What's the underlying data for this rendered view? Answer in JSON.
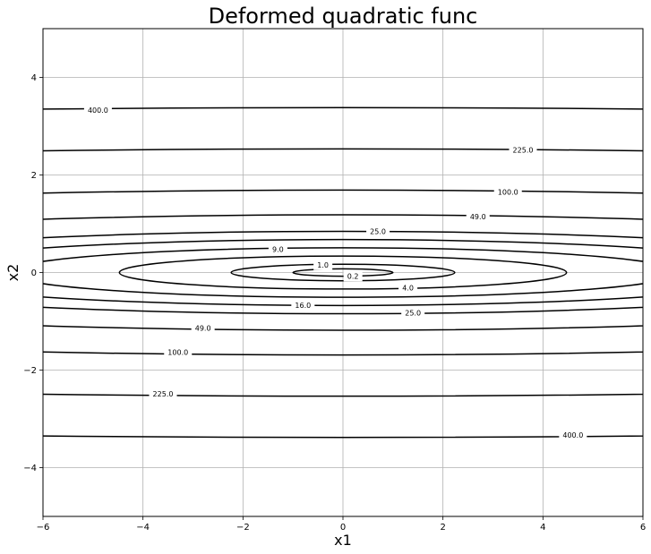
{
  "chart_data": {
    "type": "contour",
    "title": "Deformed quadratic func",
    "xlabel": "x1",
    "ylabel": "x2",
    "xlim": [
      -6,
      6
    ],
    "ylim": [
      -5,
      5
    ],
    "grid": true,
    "xticks": [
      -6,
      -4,
      -2,
      0,
      2,
      4,
      6
    ],
    "yticks": [
      -4,
      -2,
      0,
      2,
      4
    ],
    "xtick_labels": [
      "−6",
      "−4",
      "−2",
      "0",
      "2",
      "4",
      "6"
    ],
    "ytick_labels": [
      "−4",
      "−2",
      "0",
      "2",
      "4"
    ],
    "function": "0.2*x1^2 + 35*x2^2",
    "levels": [
      0.2,
      1.0,
      4.0,
      9.0,
      16.0,
      25.0,
      49.0,
      100.0,
      225.0,
      400.0
    ],
    "line_color": "#000000",
    "contour_labels": [
      {
        "text": "400.0",
        "x": -4.9,
        "y": 3.33
      },
      {
        "text": "225.0",
        "x": 3.6,
        "y": 2.51
      },
      {
        "text": "100.0",
        "x": 3.3,
        "y": 1.65
      },
      {
        "text": "49.0",
        "x": 2.7,
        "y": 1.15
      },
      {
        "text": "25.0",
        "x": 0.7,
        "y": 0.84
      },
      {
        "text": "9.0",
        "x": -1.3,
        "y": 0.48
      },
      {
        "text": "1.0",
        "x": -0.4,
        "y": 0.16
      },
      {
        "text": "0.2",
        "x": 0.2,
        "y": -0.07
      },
      {
        "text": "4.0",
        "x": 1.3,
        "y": -0.31
      },
      {
        "text": "16.0",
        "x": -0.8,
        "y": -0.67
      },
      {
        "text": "25.0",
        "x": 1.4,
        "y": -0.83
      },
      {
        "text": "49.0",
        "x": -2.8,
        "y": -1.14
      },
      {
        "text": "100.0",
        "x": -3.3,
        "y": -1.63
      },
      {
        "text": "225.0",
        "x": -3.6,
        "y": -2.49
      },
      {
        "text": "400.0",
        "x": 4.6,
        "y": -3.33
      }
    ]
  }
}
